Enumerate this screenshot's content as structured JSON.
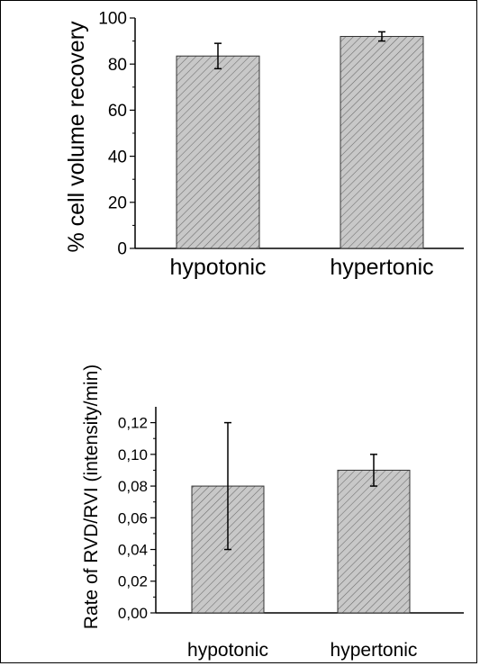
{
  "chart_data": [
    {
      "type": "bar",
      "title": "",
      "xlabel": "",
      "ylabel": "% cell volume recovery",
      "categories": [
        "hypotonic",
        "hypertonic"
      ],
      "values": [
        83.5,
        92.0
      ],
      "errors": [
        5.5,
        2.0
      ],
      "ylim": [
        0,
        100
      ],
      "yticks": [
        "0",
        "20",
        "40",
        "60",
        "80",
        "100"
      ],
      "ytick_values": [
        0,
        20,
        40,
        60,
        80,
        100
      ],
      "grid": false,
      "bar_fill": "#c8c8c8",
      "bar_hatch": "#6a6a6a"
    },
    {
      "type": "bar",
      "title": "",
      "xlabel": "",
      "ylabel": "Rate of RVD/RVI  (intensity/min)",
      "categories": [
        "hypotonic",
        "hypertonic"
      ],
      "values": [
        0.08,
        0.09
      ],
      "errors": [
        0.04,
        0.01
      ],
      "ylim": [
        0,
        0.13
      ],
      "yticks": [
        "0,00",
        "0,02",
        "0,04",
        "0,06",
        "0,08",
        "0,10",
        "0,12"
      ],
      "ytick_values": [
        0,
        0.02,
        0.04,
        0.06,
        0.08,
        0.1,
        0.12
      ],
      "grid": false,
      "bar_fill": "#c8c8c8",
      "bar_hatch": "#6a6a6a"
    }
  ]
}
